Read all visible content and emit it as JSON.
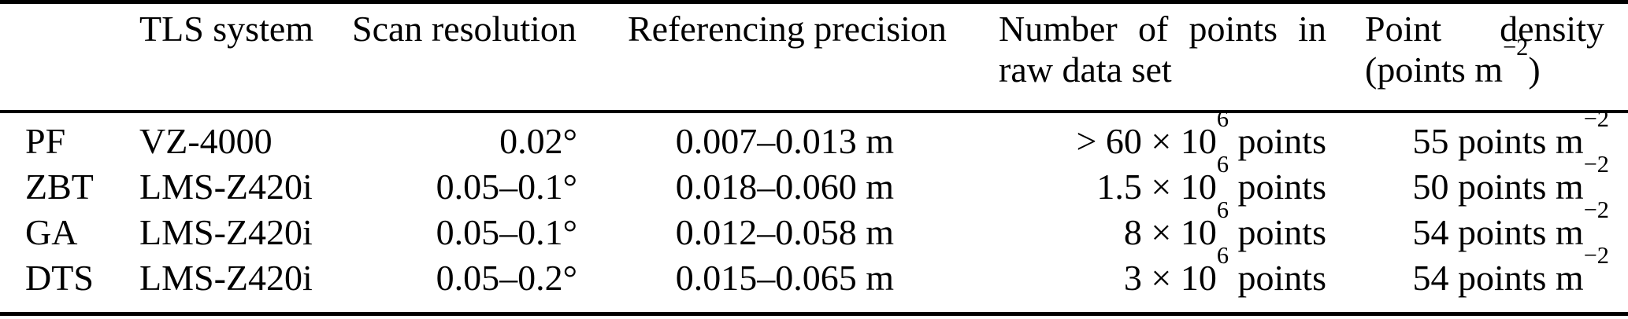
{
  "meta": {
    "background_color": "#ffffff",
    "text_color": "#000000"
  },
  "table": {
    "header": {
      "id": "",
      "tls": "TLS system",
      "scan": "Scan resolution",
      "ref": "Referencing precision",
      "points_line1": "Number of points in",
      "points_line2": "raw data set",
      "density_line1": "Point density",
      "density_line2_base": "(points m",
      "density_line2_sup": "−2",
      "density_line2_close": ")"
    },
    "rows": [
      {
        "id": "PF",
        "tls": "VZ-4000",
        "scan": "0.02°",
        "ref": "0.007–0.013 m",
        "points_base": "> 60 × 10",
        "points_sup": "6",
        "points_suffix": " points",
        "density_base": "55 points m",
        "density_sup": "−2"
      },
      {
        "id": "ZBT",
        "tls": "LMS-Z420i",
        "scan": "0.05–0.1°",
        "ref": "0.018–0.060 m",
        "points_base": "1.5 × 10",
        "points_sup": "6",
        "points_suffix": " points",
        "density_base": "50 points m",
        "density_sup": "−2"
      },
      {
        "id": "GA",
        "tls": "LMS-Z420i",
        "scan": "0.05–0.1°",
        "ref": "0.012–0.058 m",
        "points_base": "8 × 10",
        "points_sup": "6",
        "points_suffix": " points",
        "density_base": "54 points m",
        "density_sup": "−2"
      },
      {
        "id": "DTS",
        "tls": "LMS-Z420i",
        "scan": "0.05–0.2°",
        "ref": "0.015–0.065 m",
        "points_base": "3 × 10",
        "points_sup": "6",
        "points_suffix": " points",
        "density_base": "54 points m",
        "density_sup": "−2"
      }
    ]
  }
}
